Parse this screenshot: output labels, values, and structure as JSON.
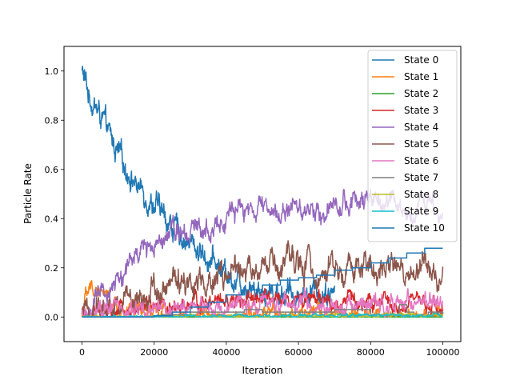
{
  "chart_data": {
    "type": "line",
    "title": "",
    "xlabel": "Iteration",
    "ylabel": "Particle Rate",
    "xlim": [
      -5000,
      105000
    ],
    "ylim": [
      -0.1,
      1.1
    ],
    "xticks": [
      0,
      20000,
      40000,
      60000,
      80000,
      100000
    ],
    "yticks": [
      0.0,
      0.2,
      0.4,
      0.6,
      0.8,
      1.0
    ],
    "xtick_labels": [
      "0",
      "20000",
      "40000",
      "60000",
      "80000",
      "100000"
    ],
    "ytick_labels": [
      "0.0",
      "0.2",
      "0.4",
      "0.6",
      "0.8",
      "1.0"
    ],
    "grid": false,
    "legend_position": "top-right",
    "series": [
      {
        "name": "State 0",
        "color": "#1f77b4",
        "style": "noisy",
        "x": [
          0,
          2000,
          5000,
          10000,
          15000,
          20000,
          25000,
          30000,
          35000,
          40000,
          45000,
          50000,
          55000,
          60000,
          65000,
          70000
        ],
        "values": [
          1.0,
          0.9,
          0.82,
          0.66,
          0.54,
          0.46,
          0.37,
          0.3,
          0.24,
          0.18,
          0.14,
          0.11,
          0.1,
          0.09,
          0.1,
          0.1
        ],
        "noise": 0.025
      },
      {
        "name": "State 1",
        "color": "#ff7f0e",
        "style": "noisy",
        "x": [
          0,
          1000,
          3000,
          5000,
          8000,
          10000,
          15000,
          20000,
          25000,
          30000,
          100000
        ],
        "values": [
          0.0,
          0.08,
          0.12,
          0.1,
          0.06,
          0.04,
          0.02,
          0.01,
          0.005,
          0.0,
          0.0
        ],
        "noise": 0.02
      },
      {
        "name": "State 2",
        "color": "#2ca02c",
        "style": "noisy",
        "x": [
          0,
          100000
        ],
        "values": [
          0.0,
          0.0
        ],
        "noise": 0.0
      },
      {
        "name": "State 3",
        "color": "#d62728",
        "style": "noisy",
        "x": [
          0,
          10000,
          20000,
          30000,
          40000,
          50000,
          60000,
          70000,
          80000,
          90000,
          100000
        ],
        "values": [
          0.0,
          0.02,
          0.04,
          0.05,
          0.06,
          0.07,
          0.07,
          0.06,
          0.06,
          0.05,
          0.04
        ],
        "noise": 0.018
      },
      {
        "name": "State 4",
        "color": "#9467bd",
        "style": "noisy",
        "x": [
          0,
          5000,
          10000,
          15000,
          20000,
          25000,
          30000,
          35000,
          40000,
          45000,
          50000,
          55000,
          60000,
          65000,
          70000,
          75000,
          80000,
          85000,
          90000,
          95000,
          100000
        ],
        "values": [
          0.0,
          0.07,
          0.15,
          0.24,
          0.31,
          0.38,
          0.36,
          0.38,
          0.4,
          0.43,
          0.44,
          0.42,
          0.45,
          0.43,
          0.46,
          0.47,
          0.45,
          0.46,
          0.44,
          0.45,
          0.46
        ],
        "noise": 0.025
      },
      {
        "name": "State 5",
        "color": "#8c564b",
        "style": "noisy",
        "x": [
          0,
          10000,
          20000,
          30000,
          40000,
          50000,
          60000,
          70000,
          80000,
          90000,
          100000
        ],
        "values": [
          0.0,
          0.06,
          0.11,
          0.15,
          0.17,
          0.19,
          0.2,
          0.19,
          0.2,
          0.2,
          0.18
        ],
        "noise": 0.03
      },
      {
        "name": "State 6",
        "color": "#e377c2",
        "style": "noisy",
        "x": [
          0,
          10000,
          20000,
          30000,
          40000,
          50000,
          60000,
          70000,
          80000,
          90000,
          100000
        ],
        "values": [
          0.0,
          0.02,
          0.03,
          0.04,
          0.05,
          0.05,
          0.05,
          0.05,
          0.05,
          0.05,
          0.04
        ],
        "noise": 0.02
      },
      {
        "name": "State 7",
        "color": "#7f7f7f",
        "style": "step",
        "x": [
          0,
          15000,
          22000,
          30000,
          38000,
          45000,
          50000,
          60000,
          70000,
          80000,
          88000,
          90000,
          92000,
          96000,
          100000
        ],
        "values": [
          0.0,
          0.0,
          0.01,
          0.02,
          0.02,
          0.03,
          0.02,
          0.02,
          0.03,
          0.01,
          0.05,
          0.02,
          0.01,
          0.02,
          0.01
        ]
      },
      {
        "name": "State 8",
        "color": "#bcbd22",
        "style": "noisy",
        "x": [
          0,
          40000,
          60000,
          80000,
          90000,
          100000
        ],
        "values": [
          0.0,
          0.0,
          0.004,
          0.006,
          0.01,
          0.004
        ],
        "noise": 0.004
      },
      {
        "name": "State 9",
        "color": "#17becf",
        "style": "noisy",
        "x": [
          0,
          40000,
          60000,
          80000,
          100000
        ],
        "values": [
          0.0,
          0.003,
          0.006,
          0.006,
          0.005
        ],
        "noise": 0.004
      },
      {
        "name": "State 10",
        "color": "#1f77b4",
        "style": "step",
        "x": [
          0,
          20000,
          25000,
          30000,
          35000,
          40000,
          45000,
          50000,
          55000,
          60000,
          65000,
          70000,
          75000,
          80000,
          85000,
          90000,
          95000,
          100000
        ],
        "values": [
          0.0,
          0.005,
          0.02,
          0.04,
          0.06,
          0.09,
          0.11,
          0.13,
          0.15,
          0.16,
          0.17,
          0.19,
          0.2,
          0.22,
          0.24,
          0.26,
          0.28,
          0.28
        ]
      }
    ]
  }
}
